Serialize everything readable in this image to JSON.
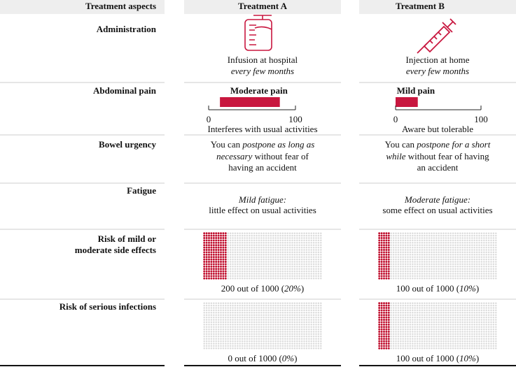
{
  "header": [
    "Treatment aspects",
    "Treatment A",
    "Treatment B"
  ],
  "rows": [
    {
      "label": [
        "Administration"
      ],
      "cells": [
        {
          "kind": "text",
          "lines": [
            [
              {
                "t": "Infusion at hospital"
              }
            ],
            [
              {
                "t": "every few months",
                "i": true
              }
            ]
          ]
        },
        {
          "kind": "text",
          "lines": [
            [
              {
                "t": "Injection at home"
              }
            ],
            [
              {
                "t": "every few months",
                "i": true
              }
            ]
          ]
        }
      ]
    },
    {
      "label": [
        "Abdominal pain"
      ],
      "cells": [
        {
          "kind": "pain",
          "title": "Moderate pain",
          "range": [
            13,
            82
          ],
          "xlim": [
            0,
            100
          ],
          "xticks": [
            0,
            100
          ],
          "caption": "Interferes with usual activities",
          "color": "#c8173f"
        },
        {
          "kind": "pain",
          "title": "Mild pain",
          "range": [
            0,
            26
          ],
          "xlim": [
            0,
            100
          ],
          "xticks": [
            0,
            100
          ],
          "caption": "Aware but tolerable",
          "color": "#c8173f"
        }
      ]
    },
    {
      "label": [
        "Bowel urgency"
      ],
      "cells": [
        {
          "kind": "text",
          "lines": [
            [
              {
                "t": "You can "
              },
              {
                "t": "postpone as long as",
                "i": true
              }
            ],
            [
              {
                "t": "necessary",
                "i": true
              },
              {
                "t": " without fear of"
              }
            ],
            [
              {
                "t": "having an accident"
              }
            ]
          ]
        },
        {
          "kind": "text",
          "lines": [
            [
              {
                "t": "You can "
              },
              {
                "t": "postpone for a short",
                "i": true
              }
            ],
            [
              {
                "t": "while",
                "i": true
              },
              {
                "t": " without fear of having"
              }
            ],
            [
              {
                "t": "an accident"
              }
            ]
          ]
        }
      ]
    },
    {
      "label": [
        "Fatigue"
      ],
      "cells": [
        {
          "kind": "text",
          "lines": [
            [
              {
                "t": "Mild fatigue:",
                "i": true
              }
            ],
            [
              {
                "t": "little effect on usual activities"
              }
            ]
          ]
        },
        {
          "kind": "text",
          "lines": [
            [
              {
                "t": "Moderate fatigue:",
                "i": true
              }
            ],
            [
              {
                "t": "some effect on usual activities"
              }
            ]
          ]
        }
      ]
    },
    {
      "label": [
        "Risk of mild or",
        "moderate side effects"
      ],
      "cells": [
        {
          "kind": "icons",
          "count": 200,
          "total": 1000,
          "color": "#c0102f",
          "caption": [
            {
              "t": "200 out of 1000 ("
            },
            {
              "t": "20%",
              "i": true
            },
            {
              "t": ")"
            }
          ]
        },
        {
          "kind": "icons",
          "count": 100,
          "total": 1000,
          "color": "#c0102f",
          "caption": [
            {
              "t": "100 out of 1000 ("
            },
            {
              "t": "10%",
              "i": true
            },
            {
              "t": ")"
            }
          ]
        }
      ]
    },
    {
      "label": [
        "Risk of serious infections"
      ],
      "cells": [
        {
          "kind": "icons",
          "count": 0,
          "total": 1000,
          "color": "#c0102f",
          "caption": [
            {
              "t": "0 out of 1000 ("
            },
            {
              "t": "0%",
              "i": true
            },
            {
              "t": ")"
            }
          ]
        },
        {
          "kind": "icons",
          "count": 100,
          "total": 1000,
          "color": "#c0102f",
          "caption": [
            {
              "t": "100 out of 1000 ("
            },
            {
              "t": "10%",
              "i": true
            },
            {
              "t": ")"
            }
          ]
        }
      ]
    }
  ]
}
